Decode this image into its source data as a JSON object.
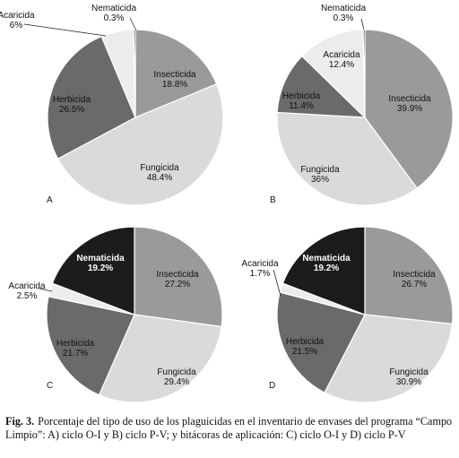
{
  "chart_data": [
    {
      "type": "pie",
      "panel_label": "A",
      "slices": [
        {
          "name": "Insecticida",
          "value": 18.8,
          "label": "18.8%",
          "color": "#9a9a9a",
          "text_color": "#111111",
          "bold": false
        },
        {
          "name": "Fungicida",
          "value": 48.4,
          "label": "48.4%",
          "color": "#dadada",
          "text_color": "#111111",
          "bold": false
        },
        {
          "name": "Herbicida",
          "value": 26.5,
          "label": "26.5%",
          "color": "#6a6a6a",
          "text_color": "#111111",
          "bold": false
        },
        {
          "name": "Acaricida",
          "value": 6,
          "label": "6%",
          "color": "#ececec",
          "text_color": "#111111",
          "bold": false
        },
        {
          "name": "Nematicida",
          "value": 0.3,
          "label": "0.3%",
          "color": "#1c1c1c",
          "text_color": "#111111",
          "bold": false
        }
      ]
    },
    {
      "type": "pie",
      "panel_label": "B",
      "slices": [
        {
          "name": "Insecticida",
          "value": 39.9,
          "label": "39.9%",
          "color": "#9a9a9a",
          "text_color": "#111111",
          "bold": false
        },
        {
          "name": "Fungicida",
          "value": 36,
          "label": "36%",
          "color": "#dadada",
          "text_color": "#111111",
          "bold": false
        },
        {
          "name": "Herbicida",
          "value": 11.4,
          "label": "11.4%",
          "color": "#6a6a6a",
          "text_color": "#111111",
          "bold": false
        },
        {
          "name": "Acaricida",
          "value": 12.4,
          "label": "12.4%",
          "color": "#ececec",
          "text_color": "#111111",
          "bold": false
        },
        {
          "name": "Nematicida",
          "value": 0.3,
          "label": "0.3%",
          "color": "#1c1c1c",
          "text_color": "#111111",
          "bold": false
        }
      ]
    },
    {
      "type": "pie",
      "panel_label": "C",
      "slices": [
        {
          "name": "Insecticida",
          "value": 27.2,
          "label": "27.2%",
          "color": "#9a9a9a",
          "text_color": "#111111",
          "bold": false
        },
        {
          "name": "Fungicida",
          "value": 29.4,
          "label": "29.4%",
          "color": "#dadada",
          "text_color": "#111111",
          "bold": false
        },
        {
          "name": "Herbicida",
          "value": 21.7,
          "label": "21.7%",
          "color": "#6a6a6a",
          "text_color": "#111111",
          "bold": false
        },
        {
          "name": "Acaricida",
          "value": 2.5,
          "label": "2.5%",
          "color": "#ececec",
          "text_color": "#111111",
          "bold": false
        },
        {
          "name": "Nematicida",
          "value": 19.2,
          "label": "19.2%",
          "color": "#1c1c1c",
          "text_color": "#ffffff",
          "bold": true
        }
      ]
    },
    {
      "type": "pie",
      "panel_label": "D",
      "slices": [
        {
          "name": "Insecticida",
          "value": 26.7,
          "label": "26.7%",
          "color": "#9a9a9a",
          "text_color": "#111111",
          "bold": false
        },
        {
          "name": "Fungicida",
          "value": 30.9,
          "label": "30.9%",
          "color": "#dadada",
          "text_color": "#111111",
          "bold": false
        },
        {
          "name": "Herbicida",
          "value": 21.5,
          "label": "21.5%",
          "color": "#6a6a6a",
          "text_color": "#111111",
          "bold": false
        },
        {
          "name": "Acaricida",
          "value": 1.7,
          "label": "1.7%",
          "color": "#ececec",
          "text_color": "#111111",
          "bold": false
        },
        {
          "name": "Nematicida",
          "value": 19.2,
          "label": "19.2%",
          "color": "#1c1c1c",
          "text_color": "#ffffff",
          "bold": true
        }
      ]
    }
  ],
  "caption": {
    "label": "Fig. 3.",
    "text": "Porcentaje del tipo de uso de los plaguicidas en el inventario de envases del programa “Campo Limpio”: A) ciclo O-I y B) ciclo P-V; y bitácoras de aplicación: C) ciclo O-I y D) ciclo P-V"
  }
}
